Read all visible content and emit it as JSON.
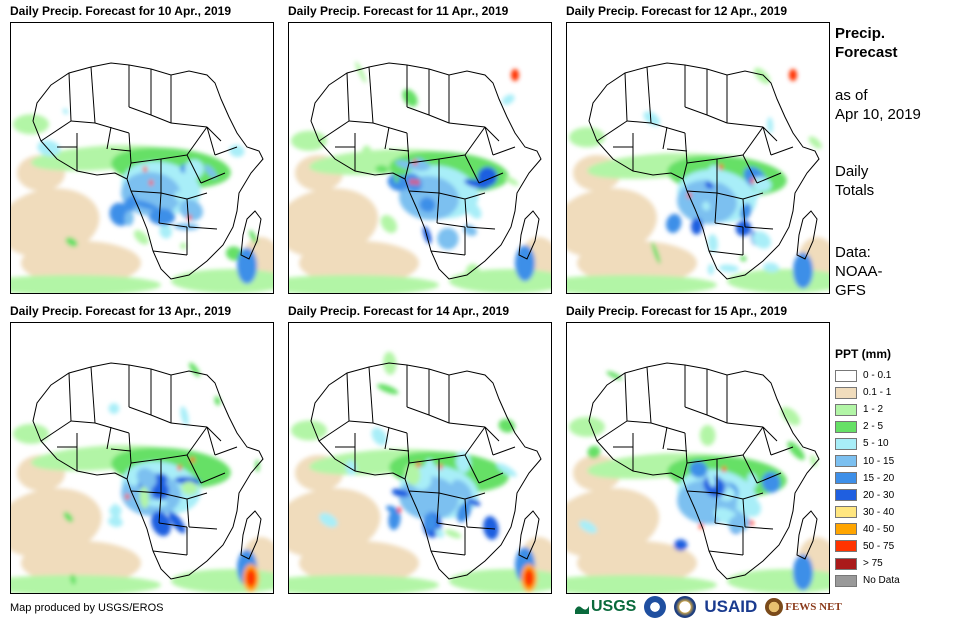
{
  "panels": [
    {
      "title": "Daily Precip. Forecast for 10 Apr., 2019",
      "variant": 0
    },
    {
      "title": "Daily Precip. Forecast for 11 Apr., 2019",
      "variant": 1
    },
    {
      "title": "Daily Precip. Forecast for 12 Apr., 2019",
      "variant": 2
    },
    {
      "title": "Daily Precip. Forecast for 13 Apr., 2019",
      "variant": 3
    },
    {
      "title": "Daily Precip. Forecast for 14 Apr., 2019",
      "variant": 4
    },
    {
      "title": "Daily Precip. Forecast for 15 Apr., 2019",
      "variant": 5
    }
  ],
  "side": {
    "title_line1": "Precip.",
    "title_line2": "Forecast",
    "asof_line1": "as of",
    "asof_line2": "Apr 10, 2019",
    "daily_line1": "Daily",
    "daily_line2": "Totals",
    "data_line1": "Data:",
    "data_line2": "NOAA-",
    "data_line3": "GFS"
  },
  "legend": {
    "title": "PPT (mm)",
    "items": [
      {
        "label": "0 - 0.1",
        "color": "#ffffff"
      },
      {
        "label": "0.1 - 1",
        "color": "#f0dcbc"
      },
      {
        "label": "1 - 2",
        "color": "#b2f5a6"
      },
      {
        "label": "2 - 5",
        "color": "#66e066"
      },
      {
        "label": "5 - 10",
        "color": "#a8eef8"
      },
      {
        "label": "10 - 15",
        "color": "#7cc0f0"
      },
      {
        "label": "15 - 20",
        "color": "#3e8fe8"
      },
      {
        "label": "20 - 30",
        "color": "#1f5fe0"
      },
      {
        "label": "30 - 40",
        "color": "#ffe680"
      },
      {
        "label": "40 - 50",
        "color": "#ffa500"
      },
      {
        "label": "50 - 75",
        "color": "#ff3300"
      },
      {
        "label": "> 75",
        "color": "#aa1a1a"
      },
      {
        "label": "No Data",
        "color": "#999999"
      }
    ]
  },
  "credit": "Map produced by USGS/EROS",
  "logos": {
    "usgs": "USGS",
    "usaid": "USAID",
    "fewsnet": "FEWS NET"
  }
}
